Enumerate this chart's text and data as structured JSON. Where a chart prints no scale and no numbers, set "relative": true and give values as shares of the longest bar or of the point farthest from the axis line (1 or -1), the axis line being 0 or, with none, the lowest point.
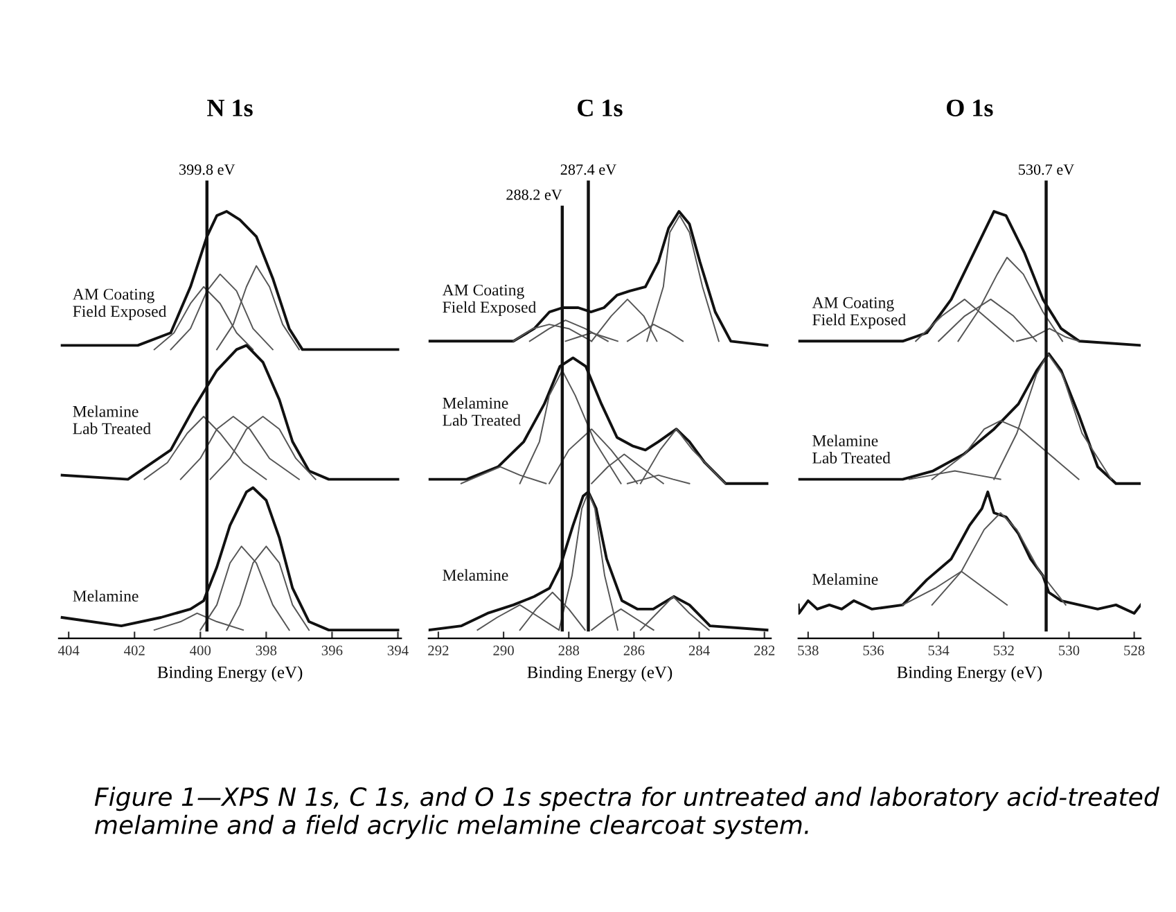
{
  "chart_data": [
    {
      "type": "line",
      "title": "N 1s",
      "xlabel": "Binding Energy (eV)",
      "relative": true,
      "tick_labels": "x",
      "xlim": [
        404.3,
        393.9
      ],
      "xticks": [
        404,
        402,
        400,
        398,
        396,
        394
      ],
      "ref_lines": [
        {
          "axis": "x",
          "value": 399.8,
          "label": "399.8 eV",
          "color": "#111111"
        }
      ],
      "annotations": [
        "Figure 1—XPS N 1s, C 1s, and O 1s spectra for untreated and laboratory acid-treated melamine and a field acrylic melamine clearcoat system."
      ],
      "series": [
        {
          "name": "AM Coating\nField Exposed",
          "color": "#111111",
          "x": [
            404.2,
            401.9,
            400.9,
            400.3,
            399.8,
            399.5,
            399.2,
            398.8,
            398.3,
            397.8,
            397.3,
            396.9,
            394.0
          ],
          "values": [
            0.68,
            0.68,
            0.71,
            0.82,
            0.94,
            0.99,
            1.0,
            0.98,
            0.94,
            0.84,
            0.72,
            0.67,
            0.67
          ]
        },
        {
          "color": "#555555",
          "x": [
            401.4,
            400.8,
            400.3,
            399.9,
            399.4,
            398.9,
            398.4
          ],
          "values": [
            0.67,
            0.71,
            0.78,
            0.82,
            0.78,
            0.71,
            0.67
          ]
        },
        {
          "color": "#555555",
          "x": [
            400.9,
            400.3,
            399.8,
            399.4,
            398.9,
            398.4,
            397.8
          ],
          "values": [
            0.67,
            0.72,
            0.81,
            0.85,
            0.81,
            0.72,
            0.67
          ]
        },
        {
          "color": "#555555",
          "x": [
            399.5,
            399.0,
            398.6,
            398.3,
            397.9,
            397.5,
            397.0
          ],
          "values": [
            0.67,
            0.73,
            0.82,
            0.87,
            0.82,
            0.73,
            0.67
          ]
        },
        {
          "name": "Melamine\nLab Treated",
          "color": "#111111",
          "x": [
            404.2,
            402.2,
            400.9,
            400.2,
            399.5,
            398.9,
            398.6,
            398.1,
            397.6,
            397.2,
            396.7,
            396.1,
            394.0
          ],
          "values": [
            0.37,
            0.36,
            0.43,
            0.53,
            0.62,
            0.67,
            0.68,
            0.64,
            0.55,
            0.45,
            0.38,
            0.36,
            0.36
          ]
        },
        {
          "color": "#555555",
          "x": [
            401.7,
            401.0,
            400.4,
            399.9,
            399.4,
            398.7,
            398.0
          ],
          "values": [
            0.36,
            0.4,
            0.47,
            0.51,
            0.47,
            0.4,
            0.36
          ]
        },
        {
          "color": "#555555",
          "x": [
            400.6,
            400.0,
            399.5,
            399.0,
            398.5,
            397.9,
            397.0
          ],
          "values": [
            0.36,
            0.41,
            0.48,
            0.51,
            0.48,
            0.41,
            0.36
          ]
        },
        {
          "color": "#555555",
          "x": [
            399.7,
            399.1,
            398.6,
            398.1,
            397.6,
            397.1,
            396.5
          ],
          "values": [
            0.36,
            0.41,
            0.48,
            0.51,
            0.48,
            0.41,
            0.36
          ]
        },
        {
          "name": "Melamine",
          "color": "#111111",
          "x": [
            404.2,
            402.4,
            401.2,
            400.3,
            399.9,
            399.5,
            399.1,
            398.6,
            398.4,
            398.0,
            397.6,
            397.2,
            396.7,
            396.1,
            394.0
          ],
          "values": [
            0.03,
            0.01,
            0.03,
            0.05,
            0.07,
            0.15,
            0.25,
            0.33,
            0.34,
            0.31,
            0.22,
            0.1,
            0.02,
            0.0,
            0.0
          ]
        },
        {
          "color": "#555555",
          "x": [
            401.4,
            400.6,
            400.1,
            399.5,
            398.7
          ],
          "values": [
            0.0,
            0.02,
            0.04,
            0.02,
            0.0
          ]
        },
        {
          "color": "#555555",
          "x": [
            400.0,
            399.5,
            399.1,
            398.75,
            398.3,
            397.8,
            397.3
          ],
          "values": [
            0.0,
            0.06,
            0.16,
            0.2,
            0.16,
            0.06,
            0.0
          ]
        },
        {
          "color": "#555555",
          "x": [
            399.2,
            398.8,
            398.4,
            398.0,
            397.6,
            397.2,
            396.7
          ],
          "values": [
            0.0,
            0.06,
            0.16,
            0.2,
            0.16,
            0.06,
            0.0
          ]
        }
      ]
    },
    {
      "type": "line",
      "title": "C 1s",
      "xlabel": "Binding Energy (eV)",
      "relative": true,
      "tick_labels": "x",
      "xlim": [
        292.3,
        281.8
      ],
      "xticks": [
        292,
        290,
        288,
        286,
        284,
        282
      ],
      "ref_lines": [
        {
          "axis": "x",
          "value": 288.2,
          "label": "288.2 eV",
          "color": "#111111"
        },
        {
          "axis": "x",
          "value": 287.4,
          "label": "287.4 eV",
          "color": "#111111"
        }
      ],
      "series": [
        {
          "name": "AM Coating\nField Exposed",
          "color": "#111111",
          "x": [
            292.3,
            289.7,
            289.06,
            288.59,
            288.19,
            287.71,
            287.32,
            286.92,
            286.52,
            286.13,
            285.65,
            285.25,
            284.94,
            284.62,
            284.3,
            283.98,
            283.51,
            283.03,
            281.92
          ],
          "values": [
            0.69,
            0.69,
            0.72,
            0.76,
            0.77,
            0.77,
            0.76,
            0.77,
            0.8,
            0.81,
            0.82,
            0.88,
            0.96,
            1.0,
            0.97,
            0.88,
            0.76,
            0.69,
            0.68
          ]
        },
        {
          "color": "#555555",
          "x": [
            289.7,
            289.1,
            288.6,
            288.0,
            287.3
          ],
          "values": [
            0.69,
            0.72,
            0.73,
            0.72,
            0.69
          ]
        },
        {
          "color": "#555555",
          "x": [
            289.2,
            288.6,
            288.1,
            287.5,
            286.8
          ],
          "values": [
            0.69,
            0.72,
            0.74,
            0.72,
            0.69
          ]
        },
        {
          "color": "#555555",
          "x": [
            288.1,
            287.7,
            287.3,
            286.9,
            286.5
          ],
          "values": [
            0.69,
            0.7,
            0.71,
            0.7,
            0.69
          ]
        },
        {
          "color": "#555555",
          "x": [
            287.3,
            286.7,
            286.2,
            285.7,
            285.3
          ],
          "values": [
            0.69,
            0.75,
            0.79,
            0.75,
            0.69
          ]
        },
        {
          "color": "#555555",
          "x": [
            286.2,
            285.8,
            285.4,
            284.9,
            284.5
          ],
          "values": [
            0.69,
            0.71,
            0.73,
            0.71,
            0.69
          ]
        },
        {
          "color": "#555555",
          "x": [
            285.6,
            285.1,
            284.9,
            284.6,
            284.3,
            283.9,
            283.4
          ],
          "values": [
            0.69,
            0.82,
            0.95,
            0.99,
            0.95,
            0.82,
            0.69
          ]
        },
        {
          "name": "Melamine\nLab Treated",
          "color": "#111111",
          "x": [
            292.3,
            291.13,
            290.17,
            289.38,
            288.75,
            288.27,
            287.87,
            287.48,
            287.0,
            286.52,
            286.05,
            285.65,
            285.25,
            284.7,
            284.3,
            283.83,
            283.19,
            281.92
          ],
          "values": [
            0.36,
            0.36,
            0.39,
            0.45,
            0.54,
            0.63,
            0.65,
            0.63,
            0.54,
            0.46,
            0.44,
            0.43,
            0.45,
            0.48,
            0.45,
            0.4,
            0.35,
            0.35
          ]
        },
        {
          "color": "#555555",
          "x": [
            291.3,
            290.7,
            290.1,
            289.5,
            288.7
          ],
          "values": [
            0.35,
            0.37,
            0.39,
            0.37,
            0.35
          ]
        },
        {
          "color": "#555555",
          "x": [
            289.5,
            288.9,
            288.6,
            288.2,
            287.8,
            287.2,
            286.4
          ],
          "values": [
            0.35,
            0.45,
            0.56,
            0.62,
            0.56,
            0.45,
            0.35
          ]
        },
        {
          "color": "#555555",
          "x": [
            288.6,
            288.0,
            287.3,
            286.7,
            285.9
          ],
          "values": [
            0.35,
            0.43,
            0.48,
            0.43,
            0.35
          ]
        },
        {
          "color": "#555555",
          "x": [
            287.3,
            286.8,
            286.3,
            285.8,
            285.1
          ],
          "values": [
            0.35,
            0.39,
            0.42,
            0.39,
            0.35
          ]
        },
        {
          "color": "#555555",
          "x": [
            286.2,
            285.7,
            285.25,
            284.8,
            284.3
          ],
          "values": [
            0.35,
            0.36,
            0.37,
            0.36,
            0.35
          ]
        },
        {
          "color": "#555555",
          "x": [
            285.8,
            285.2,
            284.7,
            284.2,
            283.2
          ],
          "values": [
            0.35,
            0.43,
            0.48,
            0.43,
            0.35
          ]
        },
        {
          "name": "Melamine",
          "color": "#111111",
          "x": [
            292.3,
            291.29,
            290.49,
            289.7,
            289.06,
            288.59,
            288.27,
            287.87,
            287.56,
            287.4,
            287.16,
            286.84,
            286.37,
            285.89,
            285.41,
            284.78,
            284.3,
            283.67,
            281.92
          ],
          "values": [
            0.0,
            0.01,
            0.04,
            0.06,
            0.08,
            0.1,
            0.15,
            0.25,
            0.32,
            0.33,
            0.29,
            0.17,
            0.07,
            0.05,
            0.05,
            0.08,
            0.06,
            0.01,
            0.0
          ]
        },
        {
          "color": "#555555",
          "x": [
            290.8,
            290.2,
            289.5,
            288.9,
            288.3
          ],
          "values": [
            0.0,
            0.03,
            0.06,
            0.03,
            0.0
          ]
        },
        {
          "color": "#555555",
          "x": [
            289.5,
            289.0,
            288.5,
            288.0,
            287.5
          ],
          "values": [
            0.0,
            0.05,
            0.09,
            0.05,
            0.0
          ]
        },
        {
          "color": "#555555",
          "x": [
            288.3,
            287.9,
            287.6,
            287.4,
            287.2,
            286.9,
            286.5
          ],
          "values": [
            0.0,
            0.13,
            0.29,
            0.33,
            0.29,
            0.13,
            0.0
          ]
        },
        {
          "color": "#555555",
          "x": [
            287.3,
            286.8,
            286.4,
            286.0,
            285.4
          ],
          "values": [
            0.0,
            0.03,
            0.05,
            0.03,
            0.0
          ]
        },
        {
          "color": "#555555",
          "x": [
            285.8,
            285.3,
            284.8,
            284.3,
            283.7
          ],
          "values": [
            0.0,
            0.04,
            0.08,
            0.04,
            0.0
          ]
        }
      ]
    },
    {
      "type": "line",
      "title": "O 1s",
      "xlabel": "Binding Energy (eV)",
      "relative": true,
      "tick_labels": "x",
      "xlim": [
        538.3,
        527.8
      ],
      "xticks": [
        538,
        536,
        534,
        532,
        530,
        528
      ],
      "ref_lines": [
        {
          "axis": "x",
          "value": 530.7,
          "label": "530.7 eV",
          "color": "#111111"
        }
      ],
      "series": [
        {
          "name": "AM Coating\nField Exposed",
          "color": "#111111",
          "x": [
            538.3,
            535.1,
            534.36,
            533.61,
            532.86,
            532.3,
            531.93,
            531.36,
            530.8,
            530.24,
            529.68,
            527.8
          ],
          "values": [
            0.69,
            0.69,
            0.71,
            0.79,
            0.91,
            1.0,
            0.99,
            0.9,
            0.79,
            0.72,
            0.69,
            0.68
          ]
        },
        {
          "color": "#555555",
          "x": [
            534.7,
            533.9,
            533.2,
            532.6,
            531.7
          ],
          "values": [
            0.69,
            0.75,
            0.79,
            0.75,
            0.69
          ]
        },
        {
          "color": "#555555",
          "x": [
            534.0,
            533.2,
            532.4,
            531.7,
            531.0
          ],
          "values": [
            0.69,
            0.75,
            0.79,
            0.75,
            0.69
          ]
        },
        {
          "color": "#555555",
          "x": [
            533.4,
            532.8,
            532.2,
            531.9,
            531.4,
            530.8,
            530.2
          ],
          "values": [
            0.69,
            0.76,
            0.85,
            0.89,
            0.85,
            0.76,
            0.69
          ]
        },
        {
          "color": "#555555",
          "x": [
            531.6,
            531.1,
            530.6,
            530.1,
            529.7
          ],
          "values": [
            0.69,
            0.7,
            0.72,
            0.7,
            0.69
          ]
        },
        {
          "name": "Melamine\nLab Treated",
          "color": "#111111",
          "x": [
            538.3,
            537.35,
            535.1,
            534.17,
            533.23,
            532.3,
            531.55,
            530.99,
            530.62,
            530.24,
            529.68,
            529.12,
            528.56,
            527.8
          ],
          "values": [
            0.36,
            0.36,
            0.36,
            0.38,
            0.42,
            0.48,
            0.54,
            0.62,
            0.66,
            0.62,
            0.51,
            0.39,
            0.35,
            0.35
          ]
        },
        {
          "color": "#555555",
          "x": [
            534.9,
            534.2,
            533.5,
            532.8,
            532.1
          ],
          "values": [
            0.36,
            0.37,
            0.38,
            0.37,
            0.36
          ]
        },
        {
          "color": "#555555",
          "x": [
            534.2,
            533.2,
            532.6,
            532.1,
            531.5,
            530.6,
            529.7
          ],
          "values": [
            0.36,
            0.42,
            0.48,
            0.5,
            0.48,
            0.42,
            0.36
          ]
        },
        {
          "color": "#555555",
          "x": [
            532.3,
            531.6,
            531.0,
            530.65,
            530.2,
            529.6,
            528.7
          ],
          "values": [
            0.36,
            0.47,
            0.61,
            0.66,
            0.61,
            0.47,
            0.36
          ]
        },
        {
          "name": "Melamine",
          "color": "#111111",
          "x": [
            538.3,
            538.28,
            538.0,
            537.72,
            537.35,
            536.97,
            536.6,
            536.04,
            535.1,
            534.36,
            533.61,
            533.05,
            532.67,
            532.49,
            532.3,
            531.93,
            531.55,
            531.18,
            530.8,
            530.62,
            530.24,
            529.68,
            529.12,
            528.56,
            528.0,
            527.8
          ],
          "values": [
            0.06,
            0.04,
            0.07,
            0.05,
            0.06,
            0.05,
            0.07,
            0.05,
            0.06,
            0.12,
            0.17,
            0.25,
            0.29,
            0.33,
            0.28,
            0.27,
            0.23,
            0.17,
            0.13,
            0.09,
            0.07,
            0.06,
            0.05,
            0.06,
            0.04,
            0.06
          ]
        },
        {
          "color": "#555555",
          "x": [
            535.1,
            534.1,
            533.3,
            532.6,
            531.9
          ],
          "values": [
            0.06,
            0.1,
            0.14,
            0.1,
            0.06
          ]
        },
        {
          "color": "#555555",
          "x": [
            534.2,
            533.3,
            532.6,
            532.1,
            531.6,
            530.9,
            530.1
          ],
          "values": [
            0.06,
            0.14,
            0.24,
            0.28,
            0.24,
            0.14,
            0.06
          ]
        }
      ]
    }
  ]
}
